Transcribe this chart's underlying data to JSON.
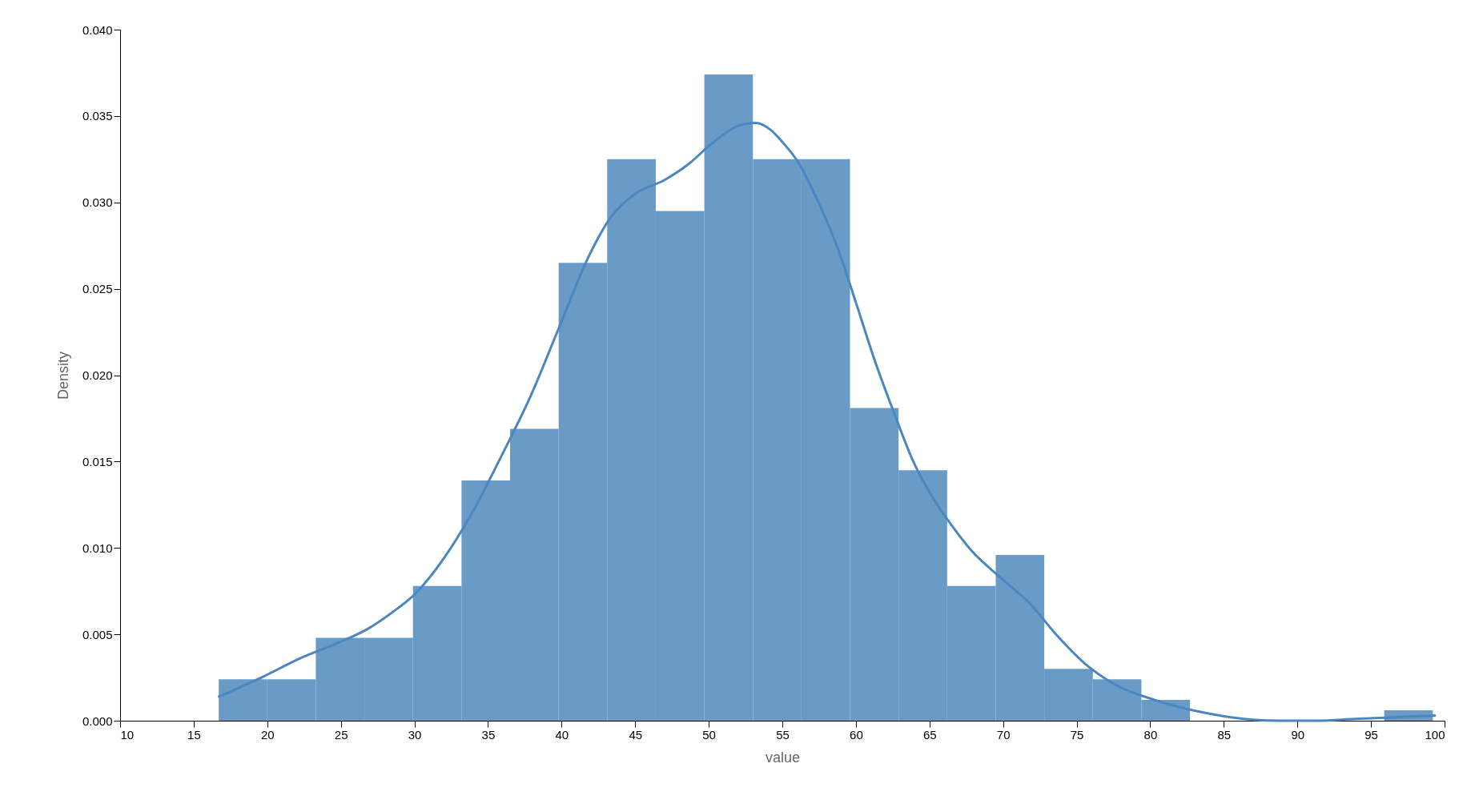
{
  "chart_data": {
    "type": "histogram",
    "xlabel": "value",
    "ylabel": "Density",
    "bins": [
      16.7,
      20.0,
      23.3,
      26.6,
      29.9,
      33.2,
      36.5,
      39.8,
      43.1,
      46.4,
      49.7,
      53.0,
      56.3,
      59.6,
      62.9,
      66.2,
      69.5,
      72.8,
      76.1,
      79.4,
      82.7,
      86.0,
      89.3,
      92.6,
      95.9,
      99.2
    ],
    "values": [
      0.0024,
      0.0024,
      0.0048,
      0.0048,
      0.0078,
      0.0139,
      0.0169,
      0.0265,
      0.0325,
      0.0295,
      0.0374,
      0.0325,
      0.0325,
      0.0181,
      0.0145,
      0.0078,
      0.0096,
      0.003,
      0.0024,
      0.0012,
      0,
      0,
      0,
      0,
      0.0006
    ],
    "color": "#6a9bc6",
    "series": [
      {
        "type": "line",
        "color": "#4a86bf",
        "x": [
          16.65,
          19.6,
          22.2,
          24.8,
          26.8,
          28.7,
          30.0,
          32.0,
          33.9,
          35.9,
          37.9,
          39.8,
          41.8,
          43.4,
          45.0,
          47.0,
          48.6,
          50.2,
          51.9,
          53.2,
          54.2,
          55.1,
          56.1,
          57.4,
          58.7,
          60.0,
          61.3,
          62.6,
          63.9,
          65.3,
          66.6,
          67.9,
          69.8,
          71.8,
          73.7,
          75.7,
          77.6,
          80.3,
          82.9,
          85.5,
          88.7,
          91.3,
          93.9,
          96.6,
          99.4
        ],
        "values": [
          0.00137,
          0.0025,
          0.0036,
          0.0045,
          0.0053,
          0.0064,
          0.0073,
          0.0094,
          0.012,
          0.0153,
          0.0188,
          0.0227,
          0.0268,
          0.0292,
          0.0305,
          0.0313,
          0.0322,
          0.0334,
          0.0344,
          0.0346,
          0.0342,
          0.0334,
          0.0323,
          0.0301,
          0.0275,
          0.0242,
          0.0208,
          0.0178,
          0.015,
          0.0128,
          0.0112,
          0.0098,
          0.0083,
          0.0068,
          0.0049,
          0.0032,
          0.0021,
          0.0012,
          0.0006,
          0.0002,
          0.0,
          0.0,
          0.0001,
          0.0002,
          0.0003
        ]
      }
    ],
    "xlim": [
      10,
      100
    ],
    "xticks": [
      10,
      15,
      20,
      25,
      30,
      35,
      40,
      45,
      50,
      55,
      60,
      65,
      70,
      75,
      80,
      85,
      90,
      95,
      100
    ],
    "ylim": [
      0,
      0.04
    ],
    "yticks": [
      {
        "value": 0,
        "label": "0.000"
      },
      {
        "value": 0.005,
        "label": "0.005"
      },
      {
        "value": 0.01,
        "label": "0.010"
      },
      {
        "value": 0.015,
        "label": "0.015"
      },
      {
        "value": 0.02,
        "label": "0.020"
      },
      {
        "value": 0.025,
        "label": "0.025"
      },
      {
        "value": 0.03,
        "label": "0.030"
      },
      {
        "value": 0.035,
        "label": "0.035"
      },
      {
        "value": 0.04,
        "label": "0.040"
      }
    ],
    "grid": false
  }
}
